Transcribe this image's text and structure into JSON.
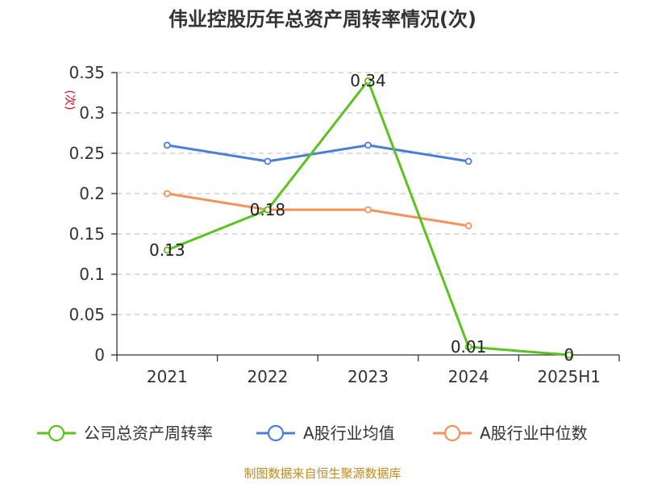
{
  "chart_data": {
    "type": "line",
    "title": "伟业控股历年总资产周转率情况(次)",
    "ylabel": "(次)",
    "categories": [
      "2021",
      "2022",
      "2023",
      "2024",
      "2025H1"
    ],
    "ylim": [
      0,
      0.35
    ],
    "yticks": [
      "0",
      "0.05",
      "0.1",
      "0.15",
      "0.2",
      "0.25",
      "0.3",
      "0.35"
    ],
    "grid": true,
    "legend_position": "bottom",
    "series": [
      {
        "name": "公司总资产周转率",
        "values": [
          0.13,
          0.18,
          0.34,
          0.01,
          0
        ],
        "labels": [
          "0.13",
          "0.18",
          "0.34",
          "0.01",
          "0"
        ],
        "color": "#5ac31e"
      },
      {
        "name": "A股行业均值",
        "values": [
          0.26,
          0.24,
          0.26,
          0.24,
          null
        ],
        "color": "#4b7fd6"
      },
      {
        "name": "A股行业中位数",
        "values": [
          0.2,
          0.18,
          0.18,
          0.16,
          null
        ],
        "color": "#f5925a"
      }
    ],
    "source": "制图数据来自恒生聚源数据库"
  }
}
